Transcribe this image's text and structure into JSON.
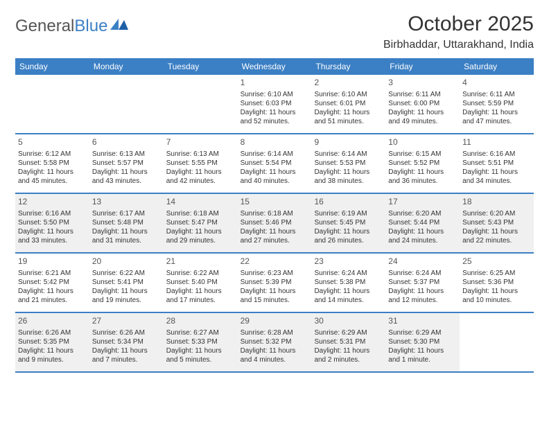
{
  "brand": {
    "part1": "General",
    "part2": "Blue"
  },
  "title": "October 2025",
  "location": "Birbhaddar, Uttarakhand, India",
  "colors": {
    "header_bg": "#3b7fc4",
    "header_text": "#ffffff",
    "shaded_bg": "#f0f0f0",
    "border": "#3b7fc4",
    "text": "#333333"
  },
  "days_of_week": [
    "Sunday",
    "Monday",
    "Tuesday",
    "Wednesday",
    "Thursday",
    "Friday",
    "Saturday"
  ],
  "weeks": [
    [
      {
        "empty": true
      },
      {
        "empty": true
      },
      {
        "empty": true
      },
      {
        "num": "1",
        "sunrise": "Sunrise: 6:10 AM",
        "sunset": "Sunset: 6:03 PM",
        "day1": "Daylight: 11 hours",
        "day2": "and 52 minutes."
      },
      {
        "num": "2",
        "sunrise": "Sunrise: 6:10 AM",
        "sunset": "Sunset: 6:01 PM",
        "day1": "Daylight: 11 hours",
        "day2": "and 51 minutes."
      },
      {
        "num": "3",
        "sunrise": "Sunrise: 6:11 AM",
        "sunset": "Sunset: 6:00 PM",
        "day1": "Daylight: 11 hours",
        "day2": "and 49 minutes."
      },
      {
        "num": "4",
        "sunrise": "Sunrise: 6:11 AM",
        "sunset": "Sunset: 5:59 PM",
        "day1": "Daylight: 11 hours",
        "day2": "and 47 minutes."
      }
    ],
    [
      {
        "num": "5",
        "sunrise": "Sunrise: 6:12 AM",
        "sunset": "Sunset: 5:58 PM",
        "day1": "Daylight: 11 hours",
        "day2": "and 45 minutes."
      },
      {
        "num": "6",
        "sunrise": "Sunrise: 6:13 AM",
        "sunset": "Sunset: 5:57 PM",
        "day1": "Daylight: 11 hours",
        "day2": "and 43 minutes."
      },
      {
        "num": "7",
        "sunrise": "Sunrise: 6:13 AM",
        "sunset": "Sunset: 5:55 PM",
        "day1": "Daylight: 11 hours",
        "day2": "and 42 minutes."
      },
      {
        "num": "8",
        "sunrise": "Sunrise: 6:14 AM",
        "sunset": "Sunset: 5:54 PM",
        "day1": "Daylight: 11 hours",
        "day2": "and 40 minutes."
      },
      {
        "num": "9",
        "sunrise": "Sunrise: 6:14 AM",
        "sunset": "Sunset: 5:53 PM",
        "day1": "Daylight: 11 hours",
        "day2": "and 38 minutes."
      },
      {
        "num": "10",
        "sunrise": "Sunrise: 6:15 AM",
        "sunset": "Sunset: 5:52 PM",
        "day1": "Daylight: 11 hours",
        "day2": "and 36 minutes."
      },
      {
        "num": "11",
        "sunrise": "Sunrise: 6:16 AM",
        "sunset": "Sunset: 5:51 PM",
        "day1": "Daylight: 11 hours",
        "day2": "and 34 minutes."
      }
    ],
    [
      {
        "num": "12",
        "sunrise": "Sunrise: 6:16 AM",
        "sunset": "Sunset: 5:50 PM",
        "day1": "Daylight: 11 hours",
        "day2": "and 33 minutes."
      },
      {
        "num": "13",
        "sunrise": "Sunrise: 6:17 AM",
        "sunset": "Sunset: 5:48 PM",
        "day1": "Daylight: 11 hours",
        "day2": "and 31 minutes."
      },
      {
        "num": "14",
        "sunrise": "Sunrise: 6:18 AM",
        "sunset": "Sunset: 5:47 PM",
        "day1": "Daylight: 11 hours",
        "day2": "and 29 minutes."
      },
      {
        "num": "15",
        "sunrise": "Sunrise: 6:18 AM",
        "sunset": "Sunset: 5:46 PM",
        "day1": "Daylight: 11 hours",
        "day2": "and 27 minutes."
      },
      {
        "num": "16",
        "sunrise": "Sunrise: 6:19 AM",
        "sunset": "Sunset: 5:45 PM",
        "day1": "Daylight: 11 hours",
        "day2": "and 26 minutes."
      },
      {
        "num": "17",
        "sunrise": "Sunrise: 6:20 AM",
        "sunset": "Sunset: 5:44 PM",
        "day1": "Daylight: 11 hours",
        "day2": "and 24 minutes."
      },
      {
        "num": "18",
        "sunrise": "Sunrise: 6:20 AM",
        "sunset": "Sunset: 5:43 PM",
        "day1": "Daylight: 11 hours",
        "day2": "and 22 minutes."
      }
    ],
    [
      {
        "num": "19",
        "sunrise": "Sunrise: 6:21 AM",
        "sunset": "Sunset: 5:42 PM",
        "day1": "Daylight: 11 hours",
        "day2": "and 21 minutes."
      },
      {
        "num": "20",
        "sunrise": "Sunrise: 6:22 AM",
        "sunset": "Sunset: 5:41 PM",
        "day1": "Daylight: 11 hours",
        "day2": "and 19 minutes."
      },
      {
        "num": "21",
        "sunrise": "Sunrise: 6:22 AM",
        "sunset": "Sunset: 5:40 PM",
        "day1": "Daylight: 11 hours",
        "day2": "and 17 minutes."
      },
      {
        "num": "22",
        "sunrise": "Sunrise: 6:23 AM",
        "sunset": "Sunset: 5:39 PM",
        "day1": "Daylight: 11 hours",
        "day2": "and 15 minutes."
      },
      {
        "num": "23",
        "sunrise": "Sunrise: 6:24 AM",
        "sunset": "Sunset: 5:38 PM",
        "day1": "Daylight: 11 hours",
        "day2": "and 14 minutes."
      },
      {
        "num": "24",
        "sunrise": "Sunrise: 6:24 AM",
        "sunset": "Sunset: 5:37 PM",
        "day1": "Daylight: 11 hours",
        "day2": "and 12 minutes."
      },
      {
        "num": "25",
        "sunrise": "Sunrise: 6:25 AM",
        "sunset": "Sunset: 5:36 PM",
        "day1": "Daylight: 11 hours",
        "day2": "and 10 minutes."
      }
    ],
    [
      {
        "num": "26",
        "sunrise": "Sunrise: 6:26 AM",
        "sunset": "Sunset: 5:35 PM",
        "day1": "Daylight: 11 hours",
        "day2": "and 9 minutes."
      },
      {
        "num": "27",
        "sunrise": "Sunrise: 6:26 AM",
        "sunset": "Sunset: 5:34 PM",
        "day1": "Daylight: 11 hours",
        "day2": "and 7 minutes."
      },
      {
        "num": "28",
        "sunrise": "Sunrise: 6:27 AM",
        "sunset": "Sunset: 5:33 PM",
        "day1": "Daylight: 11 hours",
        "day2": "and 5 minutes."
      },
      {
        "num": "29",
        "sunrise": "Sunrise: 6:28 AM",
        "sunset": "Sunset: 5:32 PM",
        "day1": "Daylight: 11 hours",
        "day2": "and 4 minutes."
      },
      {
        "num": "30",
        "sunrise": "Sunrise: 6:29 AM",
        "sunset": "Sunset: 5:31 PM",
        "day1": "Daylight: 11 hours",
        "day2": "and 2 minutes."
      },
      {
        "num": "31",
        "sunrise": "Sunrise: 6:29 AM",
        "sunset": "Sunset: 5:30 PM",
        "day1": "Daylight: 11 hours",
        "day2": "and 1 minute."
      },
      {
        "empty": true
      }
    ]
  ],
  "shaded_rows": [
    false,
    false,
    true,
    false,
    true
  ]
}
